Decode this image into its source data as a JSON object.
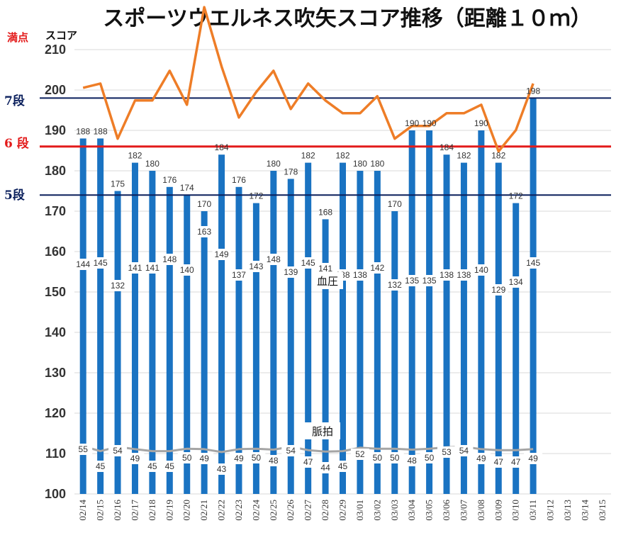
{
  "chart_data": {
    "type": "bar",
    "title": "スポーツウエルネス吹矢スコア推移（距離１０ｍ）",
    "ylabel": "スコア",
    "max_label": "満点",
    "ylim": [
      100,
      210
    ],
    "yticks": [
      100,
      110,
      120,
      130,
      140,
      150,
      160,
      170,
      180,
      190,
      200,
      210
    ],
    "grid": true,
    "categories": [
      "02/14",
      "02/15",
      "02/16",
      "02/17",
      "02/18",
      "02/19",
      "02/20",
      "02/21",
      "02/22",
      "02/23",
      "02/24",
      "02/25",
      "02/26",
      "02/27",
      "02/28",
      "02/29",
      "03/01",
      "03/02",
      "03/03",
      "03/04",
      "03/05",
      "03/06",
      "03/07",
      "03/08",
      "03/09",
      "03/10",
      "03/11",
      "03/12",
      "03/13",
      "03/14",
      "03/15"
    ],
    "bar_labels": [
      "188",
      "188",
      "175",
      "182",
      "180",
      "176",
      "174",
      "170",
      "184",
      "176",
      "172",
      "180",
      "178",
      "182",
      "168",
      "182",
      "180",
      "180",
      "170",
      "190",
      "190",
      "184",
      "182",
      "190",
      "182",
      "172",
      "198",
      "",
      "",
      "",
      ""
    ],
    "series": [
      {
        "name": "",
        "kind": "bar",
        "values": [
          188,
          188,
          175,
          182,
          180,
          176,
          174,
          170,
          184,
          176,
          172,
          180,
          178,
          182,
          168,
          182,
          180,
          180,
          170,
          190,
          190,
          184,
          182,
          190,
          182,
          172,
          198,
          null,
          null,
          null,
          null
        ]
      },
      {
        "name": "血圧",
        "kind": "line",
        "values": [
          144,
          145,
          132,
          141,
          141,
          148,
          140,
          163,
          149,
          137,
          143,
          148,
          139,
          145,
          141,
          138,
          138,
          142,
          132,
          135,
          135,
          138,
          138,
          140,
          129,
          134,
          145,
          null,
          null,
          null,
          null
        ]
      },
      {
        "name": "脈拍",
        "kind": "line",
        "values": [
          55,
          45,
          54,
          49,
          45,
          45,
          50,
          49,
          43,
          49,
          50,
          48,
          54,
          47,
          44,
          45,
          52,
          50,
          50,
          48,
          50,
          53,
          54,
          49,
          47,
          47,
          49,
          null,
          null,
          null,
          null
        ]
      }
    ],
    "reference_lines": [
      {
        "label": "7段",
        "value": 198,
        "color": "#0a1f5c"
      },
      {
        "label": "6 段",
        "value": 186,
        "color": "#e31b1b"
      },
      {
        "label": "5段",
        "value": 174,
        "color": "#0a1f5c"
      }
    ],
    "colors": {
      "bars": "#1a73c2",
      "blood_pressure": "#ee7d27",
      "pulse": "#a5a5a5",
      "max_label": "#e31b1b"
    }
  }
}
